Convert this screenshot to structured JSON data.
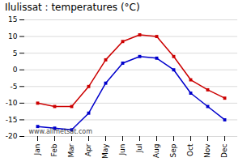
{
  "chart_data": {
    "type": "line",
    "title": "Ilulissat : temperatures (°C)",
    "categories": [
      "Jan",
      "Feb",
      "Mar",
      "Apr",
      "May",
      "Jun",
      "Jul",
      "Aug",
      "Sep",
      "Oct",
      "Nov",
      "Dec"
    ],
    "series": [
      {
        "color": "#cc0000",
        "marker": "square",
        "values": [
          -10,
          -11,
          -11,
          -5,
          3,
          8.5,
          10.5,
          10,
          4,
          -3,
          -6,
          -8.5
        ]
      },
      {
        "color": "#0000cc",
        "marker": "square",
        "values": [
          -17,
          -17.5,
          -18,
          -13,
          -4,
          2,
          4,
          3.5,
          0,
          -7,
          -11,
          -15
        ]
      }
    ],
    "ylim": [
      -20,
      15
    ],
    "yticks": [
      -20,
      -15,
      -10,
      -5,
      0,
      5,
      10,
      15
    ],
    "grid": "y",
    "annotations": [
      "www.allmetsat.com"
    ]
  }
}
